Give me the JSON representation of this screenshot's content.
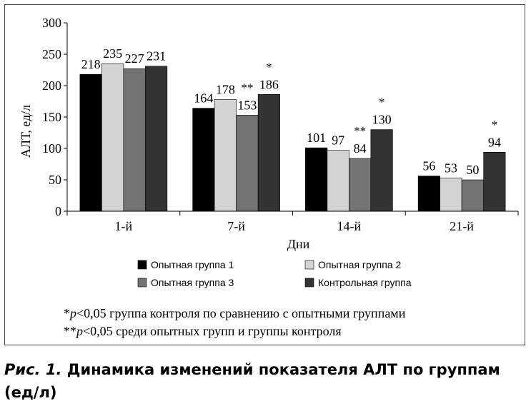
{
  "chart_data": {
    "type": "bar",
    "ylabel": "АЛТ, ед/л",
    "xlabel": "Дни",
    "ylim": [
      0,
      300
    ],
    "yticks": [
      0,
      50,
      100,
      150,
      200,
      250,
      300
    ],
    "grid": false,
    "legend_position": "bottom",
    "categories": [
      "1-й",
      "7-й",
      "14-й",
      "21-й"
    ],
    "series": [
      {
        "name": "Опытная группа 1",
        "color": "#000000",
        "values": [
          218,
          164,
          101,
          56
        ],
        "marks": [
          "",
          "",
          "",
          ""
        ]
      },
      {
        "name": "Опытная группа 2",
        "color": "#d3d3d3",
        "values": [
          235,
          178,
          97,
          53
        ],
        "marks": [
          "",
          "",
          "",
          ""
        ]
      },
      {
        "name": "Опытная группа 3",
        "color": "#737373",
        "values": [
          227,
          153,
          84,
          50
        ],
        "marks": [
          "",
          "**",
          "**",
          ""
        ]
      },
      {
        "name": "Контрольная группа",
        "color": "#333333",
        "values": [
          231,
          186,
          130,
          94
        ],
        "marks": [
          "",
          "*",
          "*",
          "*"
        ]
      }
    ],
    "notes": [
      {
        "mark": "*",
        "p": "p",
        "text": "<0,05 группа контроля по сравнению с опытными группами"
      },
      {
        "mark": "**",
        "p": "p",
        "text": "<0,05 среди опытных групп и группы контроля"
      }
    ]
  },
  "caption": {
    "prefix": "Рис. 1.",
    "text": " Динамика изменений показателя АЛТ по группам (ед/л)"
  }
}
